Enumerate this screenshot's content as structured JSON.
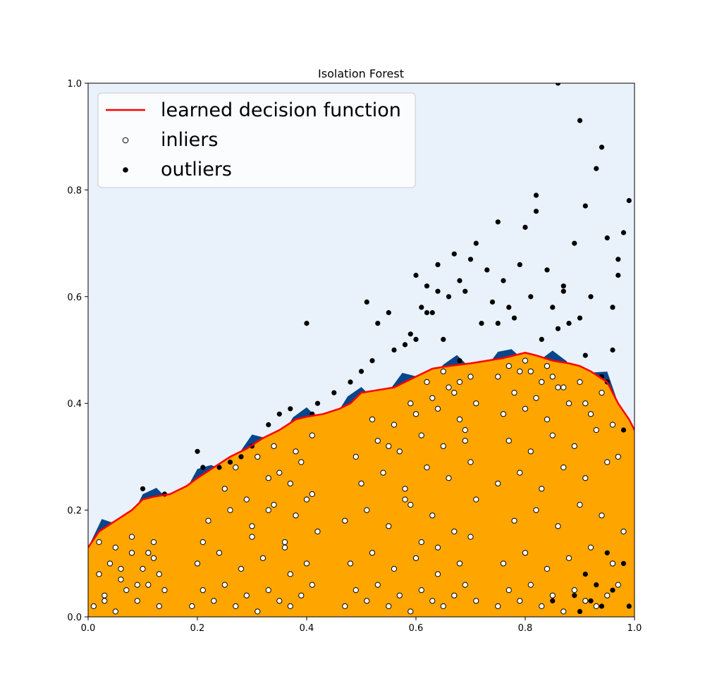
{
  "chart_data": {
    "type": "scatter",
    "title": "Isolation Forest",
    "xlabel": "",
    "ylabel": "",
    "xlim": [
      0.0,
      1.0
    ],
    "ylim": [
      0.0,
      1.0
    ],
    "x_ticks": [
      "0.0",
      "0.2",
      "0.4",
      "0.6",
      "0.8",
      "1.0"
    ],
    "y_ticks": [
      "0.0",
      "0.2",
      "0.4",
      "0.6",
      "0.8",
      "1.0"
    ],
    "grid": false,
    "legend_position": "top-left",
    "colors": {
      "background_levels": [
        "#08468b",
        "#2270b5",
        "#4a97c9",
        "#8fc1de",
        "#c7dbef",
        "#e9f1fa"
      ],
      "inlier_region": "#ffa500",
      "decision_boundary": "#ff0000",
      "inlier_fill": "#ffffff",
      "outlier_fill": "#000000"
    },
    "series": [
      {
        "name": "learned decision function",
        "kind": "line",
        "x": [
          0.0,
          0.02,
          0.05,
          0.08,
          0.1,
          0.12,
          0.15,
          0.18,
          0.2,
          0.23,
          0.26,
          0.29,
          0.32,
          0.35,
          0.38,
          0.4,
          0.43,
          0.46,
          0.48,
          0.5,
          0.53,
          0.56,
          0.58,
          0.6,
          0.63,
          0.66,
          0.7,
          0.73,
          0.76,
          0.78,
          0.8,
          0.82,
          0.85,
          0.88,
          0.9,
          0.92,
          0.95,
          0.97,
          0.99,
          1.0
        ],
        "y": [
          0.13,
          0.16,
          0.18,
          0.2,
          0.22,
          0.225,
          0.23,
          0.245,
          0.26,
          0.28,
          0.3,
          0.315,
          0.335,
          0.35,
          0.37,
          0.375,
          0.38,
          0.39,
          0.4,
          0.42,
          0.425,
          0.43,
          0.44,
          0.45,
          0.465,
          0.47,
          0.475,
          0.48,
          0.485,
          0.49,
          0.495,
          0.49,
          0.48,
          0.475,
          0.47,
          0.46,
          0.44,
          0.4,
          0.37,
          0.35
        ]
      },
      {
        "name": "inliers",
        "kind": "scatter",
        "x": [
          0.01,
          0.03,
          0.05,
          0.07,
          0.09,
          0.11,
          0.13,
          0.02,
          0.04,
          0.06,
          0.08,
          0.1,
          0.12,
          0.14,
          0.02,
          0.05,
          0.08,
          0.11,
          0.13,
          0.03,
          0.06,
          0.09,
          0.12,
          0.19,
          0.21,
          0.23,
          0.25,
          0.27,
          0.29,
          0.31,
          0.33,
          0.35,
          0.37,
          0.39,
          0.41,
          0.2,
          0.24,
          0.28,
          0.32,
          0.36,
          0.4,
          0.22,
          0.26,
          0.3,
          0.34,
          0.38,
          0.42,
          0.21,
          0.25,
          0.29,
          0.33,
          0.37,
          0.41,
          0.27,
          0.31,
          0.35,
          0.39,
          0.3,
          0.34,
          0.38,
          0.33,
          0.37,
          0.41,
          0.36,
          0.4,
          0.47,
          0.49,
          0.51,
          0.53,
          0.55,
          0.57,
          0.59,
          0.61,
          0.63,
          0.65,
          0.67,
          0.69,
          0.71,
          0.48,
          0.52,
          0.56,
          0.6,
          0.64,
          0.68,
          0.7,
          0.47,
          0.51,
          0.55,
          0.59,
          0.63,
          0.67,
          0.71,
          0.5,
          0.54,
          0.58,
          0.62,
          0.66,
          0.7,
          0.49,
          0.53,
          0.57,
          0.61,
          0.65,
          0.69,
          0.52,
          0.56,
          0.6,
          0.64,
          0.68,
          0.55,
          0.59,
          0.63,
          0.67,
          0.71,
          0.58,
          0.62,
          0.66,
          0.7,
          0.61,
          0.65,
          0.69,
          0.64,
          0.68,
          0.75,
          0.77,
          0.79,
          0.81,
          0.83,
          0.85,
          0.87,
          0.89,
          0.91,
          0.93,
          0.95,
          0.97,
          0.76,
          0.8,
          0.84,
          0.88,
          0.92,
          0.96,
          0.78,
          0.82,
          0.86,
          0.9,
          0.94,
          0.98,
          0.75,
          0.79,
          0.83,
          0.87,
          0.91,
          0.95,
          0.77,
          0.81,
          0.85,
          0.89,
          0.93,
          0.97,
          0.76,
          0.8,
          0.84,
          0.88,
          0.92,
          0.96,
          0.78,
          0.82,
          0.86,
          0.9,
          0.94,
          0.75,
          0.79,
          0.83,
          0.87,
          0.91,
          0.77,
          0.81,
          0.85,
          0.8,
          0.84
        ],
        "y": [
          0.02,
          0.04,
          0.01,
          0.05,
          0.03,
          0.06,
          0.02,
          0.08,
          0.1,
          0.07,
          0.12,
          0.09,
          0.11,
          0.05,
          0.14,
          0.13,
          0.15,
          0.12,
          0.08,
          0.03,
          0.09,
          0.06,
          0.14,
          0.02,
          0.05,
          0.03,
          0.06,
          0.02,
          0.04,
          0.01,
          0.05,
          0.03,
          0.02,
          0.04,
          0.06,
          0.1,
          0.12,
          0.09,
          0.11,
          0.13,
          0.1,
          0.18,
          0.2,
          0.17,
          0.21,
          0.19,
          0.16,
          0.14,
          0.24,
          0.22,
          0.26,
          0.25,
          0.23,
          0.28,
          0.3,
          0.27,
          0.29,
          0.15,
          0.32,
          0.31,
          0.2,
          0.08,
          0.34,
          0.14,
          0.22,
          0.02,
          0.05,
          0.03,
          0.06,
          0.02,
          0.04,
          0.01,
          0.05,
          0.03,
          0.02,
          0.04,
          0.06,
          0.03,
          0.1,
          0.12,
          0.09,
          0.11,
          0.13,
          0.1,
          0.15,
          0.18,
          0.2,
          0.17,
          0.21,
          0.19,
          0.16,
          0.22,
          0.25,
          0.27,
          0.24,
          0.28,
          0.26,
          0.29,
          0.3,
          0.33,
          0.31,
          0.34,
          0.32,
          0.35,
          0.37,
          0.36,
          0.38,
          0.39,
          0.37,
          0.32,
          0.4,
          0.41,
          0.42,
          0.4,
          0.22,
          0.44,
          0.43,
          0.45,
          0.14,
          0.46,
          0.33,
          0.08,
          0.44,
          0.02,
          0.05,
          0.03,
          0.06,
          0.02,
          0.04,
          0.01,
          0.05,
          0.03,
          0.02,
          0.04,
          0.06,
          0.1,
          0.12,
          0.09,
          0.11,
          0.13,
          0.1,
          0.18,
          0.2,
          0.17,
          0.21,
          0.19,
          0.16,
          0.25,
          0.27,
          0.24,
          0.28,
          0.26,
          0.29,
          0.33,
          0.31,
          0.34,
          0.32,
          0.35,
          0.3,
          0.38,
          0.39,
          0.37,
          0.4,
          0.38,
          0.36,
          0.42,
          0.41,
          0.43,
          0.44,
          0.42,
          0.45,
          0.46,
          0.44,
          0.43,
          0.4,
          0.47,
          0.46,
          0.45,
          0.48,
          0.47
        ]
      },
      {
        "name": "outliers",
        "kind": "scatter",
        "x": [
          0.1,
          0.14,
          0.2,
          0.21,
          0.24,
          0.26,
          0.28,
          0.3,
          0.33,
          0.35,
          0.37,
          0.4,
          0.41,
          0.42,
          0.45,
          0.48,
          0.5,
          0.51,
          0.52,
          0.53,
          0.55,
          0.56,
          0.58,
          0.59,
          0.6,
          0.61,
          0.62,
          0.63,
          0.64,
          0.65,
          0.66,
          0.67,
          0.68,
          0.69,
          0.7,
          0.71,
          0.72,
          0.73,
          0.74,
          0.75,
          0.76,
          0.77,
          0.78,
          0.79,
          0.8,
          0.81,
          0.82,
          0.83,
          0.84,
          0.85,
          0.86,
          0.87,
          0.88,
          0.89,
          0.9,
          0.91,
          0.92,
          0.93,
          0.94,
          0.95,
          0.96,
          0.97,
          0.98,
          0.99,
          0.86,
          0.9,
          0.94,
          0.95,
          0.82,
          0.87,
          0.91,
          0.96,
          0.97,
          0.75,
          0.68,
          0.64,
          0.6,
          0.62,
          0.98,
          0.93,
          0.85,
          0.89,
          0.99,
          0.9,
          0.92,
          0.94,
          0.96,
          0.98,
          0.91,
          0.95
        ],
        "y": [
          0.24,
          0.23,
          0.31,
          0.28,
          0.28,
          0.29,
          0.3,
          0.32,
          0.36,
          0.38,
          0.39,
          0.55,
          0.38,
          0.4,
          0.42,
          0.44,
          0.46,
          0.59,
          0.48,
          0.55,
          0.57,
          0.5,
          0.51,
          0.53,
          0.64,
          0.58,
          0.62,
          0.57,
          0.66,
          0.52,
          0.6,
          0.68,
          0.63,
          0.61,
          0.67,
          0.7,
          0.55,
          0.65,
          0.59,
          0.74,
          0.63,
          0.58,
          0.56,
          0.66,
          0.73,
          0.6,
          0.79,
          0.52,
          0.65,
          0.58,
          1.0,
          0.62,
          0.55,
          0.7,
          0.93,
          0.77,
          0.6,
          0.84,
          0.88,
          0.71,
          0.5,
          0.67,
          0.72,
          0.78,
          0.54,
          0.56,
          0.45,
          0.44,
          0.76,
          0.61,
          0.49,
          0.58,
          0.64,
          0.55,
          0.48,
          0.61,
          0.52,
          0.57,
          0.35,
          0.06,
          0.03,
          0.04,
          0.02,
          0.01,
          0.03,
          0.02,
          0.05,
          0.1,
          0.08,
          0.12
        ]
      }
    ]
  }
}
